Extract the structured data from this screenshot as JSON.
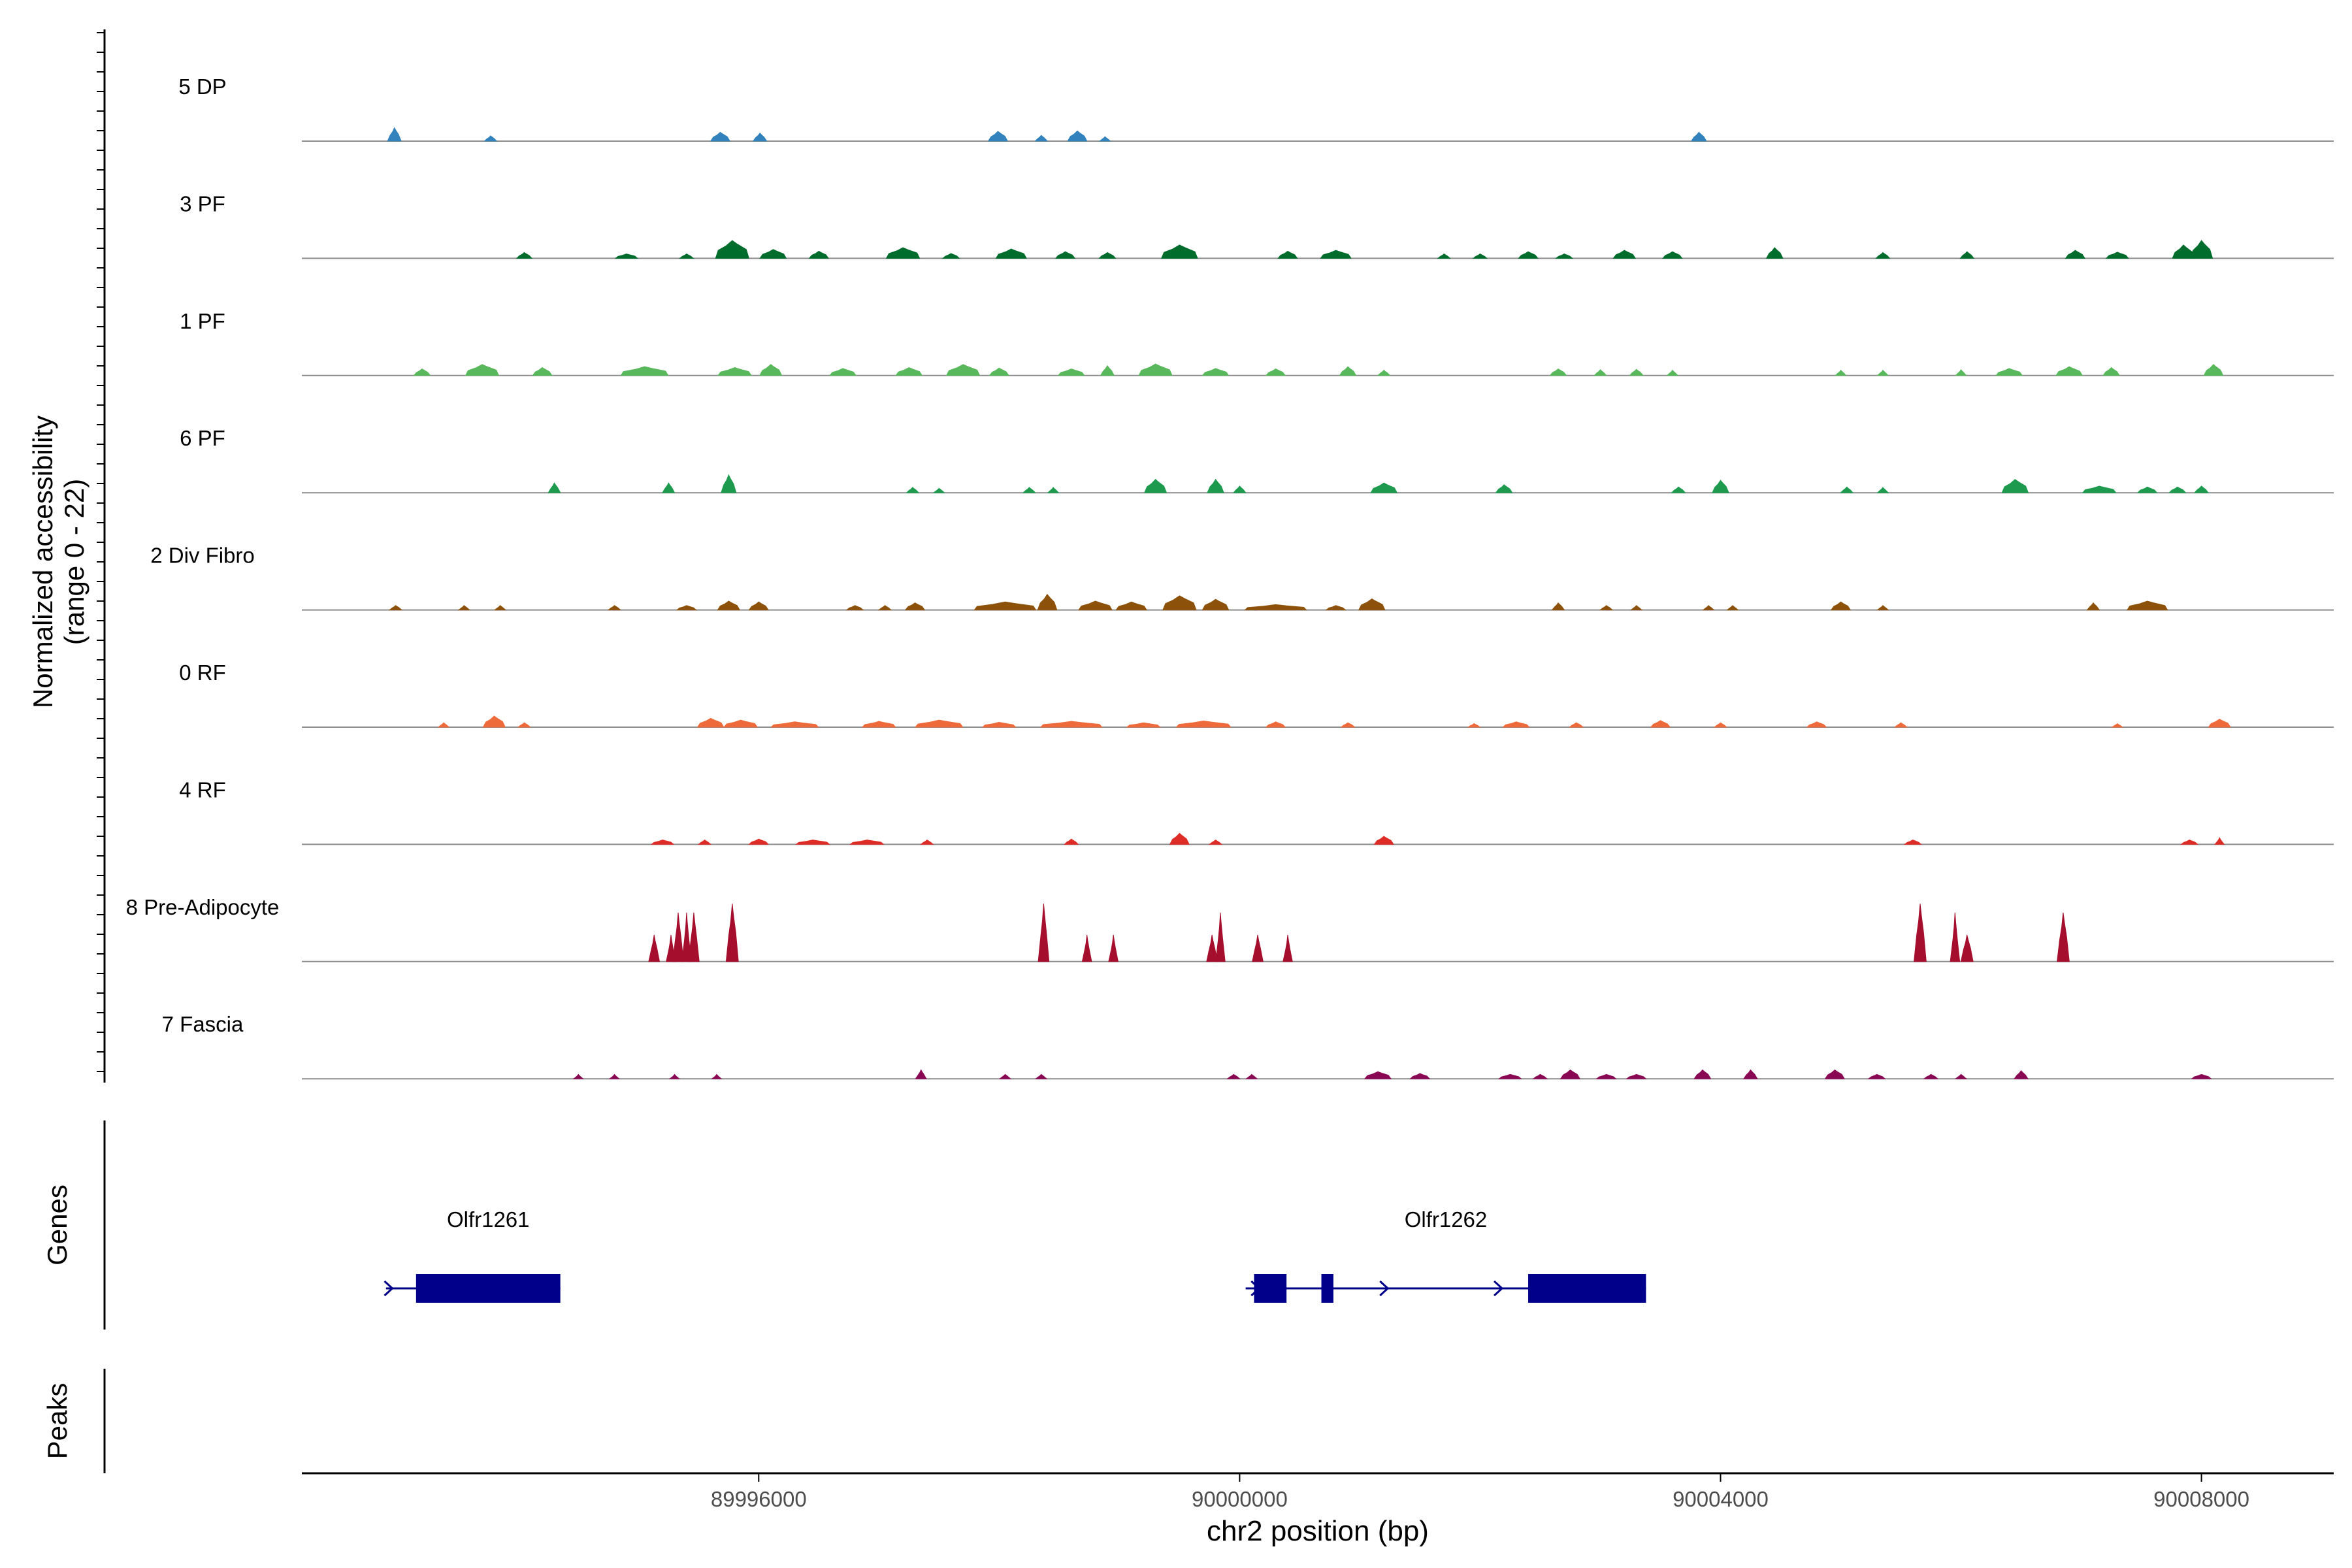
{
  "chart_data": {
    "type": "area",
    "title": "",
    "xlabel": "chr2 position (bp)",
    "xlim": [
      89992200,
      90009100
    ],
    "x_ticks": [
      89996000,
      90000000,
      90004000,
      90008000
    ],
    "x_tick_labels": [
      "89996000",
      "90000000",
      "90004000",
      "90008000"
    ],
    "ylabel_line1": "Normalized accessibility",
    "ylabel_line2": "(range 0 - 22)",
    "ylim": [
      0,
      22
    ],
    "panel_labels": {
      "genes": "Genes",
      "peaks": "Peaks"
    },
    "tracks": [
      {
        "name": "5 DP",
        "color": "#3182bd",
        "peaks": [
          [
            89992970,
            0.06,
            3.0
          ],
          [
            89993770,
            0.05,
            1.2
          ],
          [
            89995680,
            0.1,
            2.0
          ],
          [
            89996010,
            0.06,
            1.8
          ],
          [
            89997990,
            0.1,
            2.2
          ],
          [
            89998350,
            0.05,
            1.3
          ],
          [
            89998650,
            0.1,
            2.3
          ],
          [
            89998880,
            0.04,
            1.0
          ],
          [
            90003820,
            0.07,
            2.0
          ]
        ]
      },
      {
        "name": "3 PF",
        "color": "#006d2c",
        "peaks": [
          [
            89994050,
            0.07,
            1.3
          ],
          [
            89994900,
            0.12,
            1.0
          ],
          [
            89995400,
            0.06,
            1.0
          ],
          [
            89995780,
            0.2,
            4.0
          ],
          [
            89996120,
            0.15,
            2.0
          ],
          [
            89996500,
            0.1,
            1.6
          ],
          [
            89997200,
            0.2,
            2.4
          ],
          [
            89997600,
            0.08,
            1.1
          ],
          [
            89998100,
            0.18,
            2.1
          ],
          [
            89998550,
            0.1,
            1.5
          ],
          [
            89998900,
            0.08,
            1.3
          ],
          [
            89999500,
            0.22,
            3.0
          ],
          [
            90000400,
            0.1,
            1.6
          ],
          [
            90000800,
            0.18,
            1.8
          ],
          [
            90001700,
            0.05,
            1.0
          ],
          [
            90002000,
            0.06,
            1.0
          ],
          [
            90002400,
            0.1,
            1.5
          ],
          [
            90002700,
            0.08,
            1.0
          ],
          [
            90003200,
            0.12,
            1.8
          ],
          [
            90003600,
            0.1,
            1.5
          ],
          [
            90004450,
            0.08,
            2.4
          ],
          [
            90005350,
            0.06,
            1.3
          ],
          [
            90006050,
            0.06,
            1.5
          ],
          [
            90006950,
            0.1,
            1.8
          ],
          [
            90007300,
            0.12,
            1.4
          ],
          [
            90007850,
            0.12,
            3.0
          ],
          [
            90008000,
            0.12,
            4.0
          ]
        ]
      },
      {
        "name": "1 PF",
        "color": "#5ab85c",
        "peaks": [
          [
            89993200,
            0.08,
            1.5
          ],
          [
            89993700,
            0.2,
            2.5
          ],
          [
            89994200,
            0.1,
            1.8
          ],
          [
            89995050,
            0.3,
            2.0
          ],
          [
            89995800,
            0.2,
            1.8
          ],
          [
            89996100,
            0.12,
            2.5
          ],
          [
            89996700,
            0.15,
            1.6
          ],
          [
            89997250,
            0.15,
            1.8
          ],
          [
            89997700,
            0.2,
            2.5
          ],
          [
            89998000,
            0.1,
            1.7
          ],
          [
            89998600,
            0.15,
            1.5
          ],
          [
            89998900,
            0.06,
            2.2
          ],
          [
            89999300,
            0.2,
            2.6
          ],
          [
            89999800,
            0.15,
            1.6
          ],
          [
            90000300,
            0.1,
            1.5
          ],
          [
            90000900,
            0.08,
            2.0
          ],
          [
            90001200,
            0.05,
            1.2
          ],
          [
            90002650,
            0.08,
            1.5
          ],
          [
            90003000,
            0.05,
            1.3
          ],
          [
            90003300,
            0.06,
            1.4
          ],
          [
            90003600,
            0.04,
            1.2
          ],
          [
            90005000,
            0.04,
            1.2
          ],
          [
            90005350,
            0.04,
            1.2
          ],
          [
            90006000,
            0.04,
            1.3
          ],
          [
            90006400,
            0.15,
            1.6
          ],
          [
            90006900,
            0.15,
            2.0
          ],
          [
            90007250,
            0.08,
            1.8
          ],
          [
            90008100,
            0.1,
            2.5
          ]
        ]
      },
      {
        "name": "6 PF",
        "color": "#1e9a4e",
        "peaks": [
          [
            89994300,
            0.05,
            2.2
          ],
          [
            89995250,
            0.05,
            2.2
          ],
          [
            89995750,
            0.07,
            4.0
          ],
          [
            89997280,
            0.05,
            1.2
          ],
          [
            89997500,
            0.04,
            1.0
          ],
          [
            89998250,
            0.05,
            1.2
          ],
          [
            89998450,
            0.04,
            1.2
          ],
          [
            89999300,
            0.12,
            3.0
          ],
          [
            89999800,
            0.08,
            3.0
          ],
          [
            90000000,
            0.05,
            1.5
          ],
          [
            90001200,
            0.15,
            2.2
          ],
          [
            90002200,
            0.08,
            1.8
          ],
          [
            90003650,
            0.06,
            1.3
          ],
          [
            90004000,
            0.08,
            2.8
          ],
          [
            90005050,
            0.05,
            1.3
          ],
          [
            90005350,
            0.04,
            1.2
          ],
          [
            90006450,
            0.15,
            3.0
          ],
          [
            90007150,
            0.2,
            1.5
          ],
          [
            90007550,
            0.1,
            1.3
          ],
          [
            90007800,
            0.08,
            1.3
          ],
          [
            90008000,
            0.06,
            1.5
          ]
        ]
      },
      {
        "name": "2 Div Fibro",
        "color": "#8c510a",
        "peaks": [
          [
            89992980,
            0.05,
            1.0
          ],
          [
            89993550,
            0.04,
            1.0
          ],
          [
            89993850,
            0.04,
            1.0
          ],
          [
            89994800,
            0.05,
            1.0
          ],
          [
            89995400,
            0.1,
            1.0
          ],
          [
            89995750,
            0.12,
            2.0
          ],
          [
            89996000,
            0.1,
            1.8
          ],
          [
            89996800,
            0.08,
            1.0
          ],
          [
            89997050,
            0.05,
            1.0
          ],
          [
            89997300,
            0.1,
            1.6
          ],
          [
            89998050,
            0.4,
            1.8
          ],
          [
            89998400,
            0.1,
            3.5
          ],
          [
            89998800,
            0.2,
            2.0
          ],
          [
            89999100,
            0.18,
            1.8
          ],
          [
            89999500,
            0.2,
            3.2
          ],
          [
            89999800,
            0.15,
            2.4
          ],
          [
            90000300,
            0.4,
            1.2
          ],
          [
            90000800,
            0.1,
            1.0
          ],
          [
            90001100,
            0.15,
            2.5
          ],
          [
            90002650,
            0.05,
            1.6
          ],
          [
            90003050,
            0.05,
            1.0
          ],
          [
            90003300,
            0.04,
            1.0
          ],
          [
            90003900,
            0.04,
            1.0
          ],
          [
            90004100,
            0.04,
            1.0
          ],
          [
            90005000,
            0.1,
            1.8
          ],
          [
            90005350,
            0.04,
            1.0
          ],
          [
            90007100,
            0.05,
            1.6
          ],
          [
            90007550,
            0.25,
            2.0
          ]
        ]
      },
      {
        "name": "0 RF",
        "color": "#ee6a3a",
        "peaks": [
          [
            89993380,
            0.04,
            1.0
          ],
          [
            89993800,
            0.12,
            2.5
          ],
          [
            89994050,
            0.05,
            1.0
          ],
          [
            89995600,
            0.15,
            2.0
          ],
          [
            89995850,
            0.2,
            1.6
          ],
          [
            89996300,
            0.3,
            1.2
          ],
          [
            89997000,
            0.2,
            1.3
          ],
          [
            89997500,
            0.3,
            1.6
          ],
          [
            89998000,
            0.2,
            1.1
          ],
          [
            89998600,
            0.4,
            1.3
          ],
          [
            89999200,
            0.2,
            1.0
          ],
          [
            89999700,
            0.35,
            1.4
          ],
          [
            90000300,
            0.1,
            1.2
          ],
          [
            90000900,
            0.06,
            1.0
          ],
          [
            90001950,
            0.05,
            0.8
          ],
          [
            90002300,
            0.15,
            1.2
          ],
          [
            90002800,
            0.06,
            1.0
          ],
          [
            90003500,
            0.1,
            1.5
          ],
          [
            90004000,
            0.05,
            1.0
          ],
          [
            90004800,
            0.1,
            1.2
          ],
          [
            90005500,
            0.05,
            1.0
          ],
          [
            90007300,
            0.04,
            0.8
          ],
          [
            90008150,
            0.12,
            1.8
          ]
        ]
      },
      {
        "name": "4 RF",
        "color": "#de2d26",
        "peaks": [
          [
            89995200,
            0.12,
            1.0
          ],
          [
            89995550,
            0.05,
            1.0
          ],
          [
            89996000,
            0.1,
            1.2
          ],
          [
            89996450,
            0.2,
            1.0
          ],
          [
            89996900,
            0.2,
            1.0
          ],
          [
            89997400,
            0.05,
            1.0
          ],
          [
            89998600,
            0.06,
            1.2
          ],
          [
            89999500,
            0.1,
            2.5
          ],
          [
            89999800,
            0.05,
            1.0
          ],
          [
            90001200,
            0.1,
            1.8
          ],
          [
            90005600,
            0.08,
            1.0
          ],
          [
            90007900,
            0.08,
            1.0
          ],
          [
            90008150,
            0.03,
            1.5
          ]
        ]
      },
      {
        "name": "8 Pre-Adipocyte",
        "color": "#a50f2d",
        "peaks": [
          [
            89995130,
            0.04,
            6.0
          ],
          [
            89995270,
            0.03,
            6.0
          ],
          [
            89995330,
            0.04,
            11.0
          ],
          [
            89995460,
            0.04,
            11.0
          ],
          [
            89995400,
            0.03,
            11.0
          ],
          [
            89995780,
            0.05,
            13.0
          ],
          [
            89998370,
            0.04,
            13.0
          ],
          [
            89998730,
            0.03,
            6.0
          ],
          [
            89998950,
            0.03,
            6.0
          ],
          [
            89999770,
            0.04,
            6.0
          ],
          [
            89999840,
            0.03,
            11.0
          ],
          [
            90000150,
            0.04,
            6.0
          ],
          [
            90000400,
            0.03,
            6.0
          ],
          [
            90005660,
            0.05,
            13.0
          ],
          [
            90006050,
            0.05,
            6.0
          ],
          [
            90005950,
            0.03,
            11.0
          ],
          [
            90006850,
            0.05,
            11.0
          ]
        ]
      },
      {
        "name": "7 Fascia",
        "color": "#8a0753",
        "peaks": [
          [
            89994500,
            0.03,
            1.0
          ],
          [
            89994800,
            0.03,
            1.0
          ],
          [
            89995300,
            0.03,
            1.0
          ],
          [
            89995650,
            0.03,
            1.0
          ],
          [
            89997350,
            0.04,
            2.0
          ],
          [
            89998050,
            0.04,
            1.0
          ],
          [
            89998350,
            0.04,
            1.0
          ],
          [
            89999950,
            0.05,
            1.0
          ],
          [
            90000100,
            0.04,
            1.0
          ],
          [
            90001150,
            0.15,
            1.6
          ],
          [
            90001500,
            0.1,
            1.2
          ],
          [
            90002250,
            0.12,
            1.0
          ],
          [
            90002500,
            0.06,
            1.0
          ],
          [
            90002750,
            0.1,
            2.0
          ],
          [
            90003050,
            0.1,
            1.0
          ],
          [
            90003300,
            0.1,
            1.0
          ],
          [
            90003850,
            0.08,
            2.0
          ],
          [
            90004250,
            0.06,
            2.0
          ],
          [
            90004950,
            0.1,
            2.0
          ],
          [
            90005300,
            0.08,
            1.0
          ],
          [
            90005750,
            0.06,
            1.0
          ],
          [
            90006000,
            0.04,
            1.0
          ],
          [
            90006500,
            0.06,
            1.8
          ],
          [
            90008000,
            0.1,
            1.0
          ]
        ]
      }
    ],
    "genes": [
      {
        "name": "Olfr1261",
        "strand": "+",
        "start": 89992900,
        "end": 89994350,
        "exons": [
          [
            89993150,
            89994350
          ]
        ],
        "arrows": [
          89992920
        ]
      },
      {
        "name": "Olfr1262",
        "strand": "+",
        "start": 90000050,
        "end": 90003380,
        "exons": [
          [
            90000120,
            90000390
          ],
          [
            90000680,
            90000780
          ],
          [
            90002400,
            90003380
          ]
        ],
        "arrows": [
          90000130,
          90001200,
          90002150
        ]
      }
    ]
  }
}
